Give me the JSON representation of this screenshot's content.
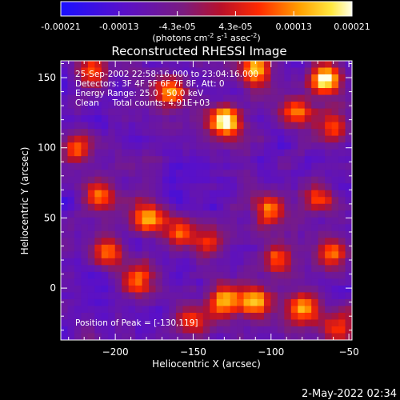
{
  "chart_data": {
    "type": "heatmap",
    "title": "Reconstructed RHESSI Image",
    "xlabel": "Heliocentric X (arcsec)",
    "ylabel": "Heliocentric Y (arcsec)",
    "xlim": [
      -235,
      -48
    ],
    "ylim": [
      -37,
      162
    ],
    "x_ticks": [
      -200,
      -150,
      -100,
      -50
    ],
    "y_ticks": [
      0,
      50,
      100,
      150
    ],
    "colorbar": {
      "ticks": [
        "-0.00021",
        "-0.00013",
        "-4.3e-05",
        "4.3e-05",
        "0.00013",
        "0.00021"
      ],
      "min": -0.00021,
      "max": 0.00021,
      "label_prefix": "(photons cm",
      "label_sup1": "-2",
      "label_mid": " s",
      "label_sup2": "-1",
      "label_mid2": " asec",
      "label_sup3": "-2",
      "label_suffix": ")"
    },
    "annotations": [
      "25-Sep-2002 22:58:16.000 to 23:04:16.000",
      "Detectors: 3F 4F 5F 6F 7F 8F, Att: 0",
      "Energy Range: 25.0 - 50.0 keV",
      "Clean     Total counts: 4.91E+03"
    ],
    "peak_label": "Position of Peak = [-130,119]",
    "peak_position": [
      -130,
      119
    ],
    "bright_sources": [
      {
        "x": -130,
        "y": 119,
        "intensity": 1.0
      },
      {
        "x": -65,
        "y": 148,
        "intensity": 0.95
      },
      {
        "x": -110,
        "y": 155,
        "intensity": 0.75
      },
      {
        "x": -85,
        "y": 125,
        "intensity": 0.7
      },
      {
        "x": -60,
        "y": 115,
        "intensity": 0.6
      },
      {
        "x": -165,
        "y": 140,
        "intensity": 0.75
      },
      {
        "x": -215,
        "y": 155,
        "intensity": 0.65
      },
      {
        "x": -225,
        "y": 100,
        "intensity": 0.7
      },
      {
        "x": -210,
        "y": 65,
        "intensity": 0.7
      },
      {
        "x": -180,
        "y": 50,
        "intensity": 0.85
      },
      {
        "x": -160,
        "y": 40,
        "intensity": 0.6
      },
      {
        "x": -140,
        "y": 35,
        "intensity": 0.55
      },
      {
        "x": -100,
        "y": 55,
        "intensity": 0.7
      },
      {
        "x": -95,
        "y": 20,
        "intensity": 0.55
      },
      {
        "x": -70,
        "y": 65,
        "intensity": 0.6
      },
      {
        "x": -60,
        "y": 25,
        "intensity": 0.6
      },
      {
        "x": -205,
        "y": 25,
        "intensity": 0.6
      },
      {
        "x": -185,
        "y": 5,
        "intensity": 0.65
      },
      {
        "x": -130,
        "y": -10,
        "intensity": 0.85
      },
      {
        "x": -110,
        "y": -8,
        "intensity": 0.9
      },
      {
        "x": -80,
        "y": -15,
        "intensity": 0.75
      },
      {
        "x": -150,
        "y": -25,
        "intensity": 0.5
      },
      {
        "x": -58,
        "y": -30,
        "intensity": 0.55
      }
    ]
  },
  "footer_timestamp": "2-May-2022 02:34"
}
